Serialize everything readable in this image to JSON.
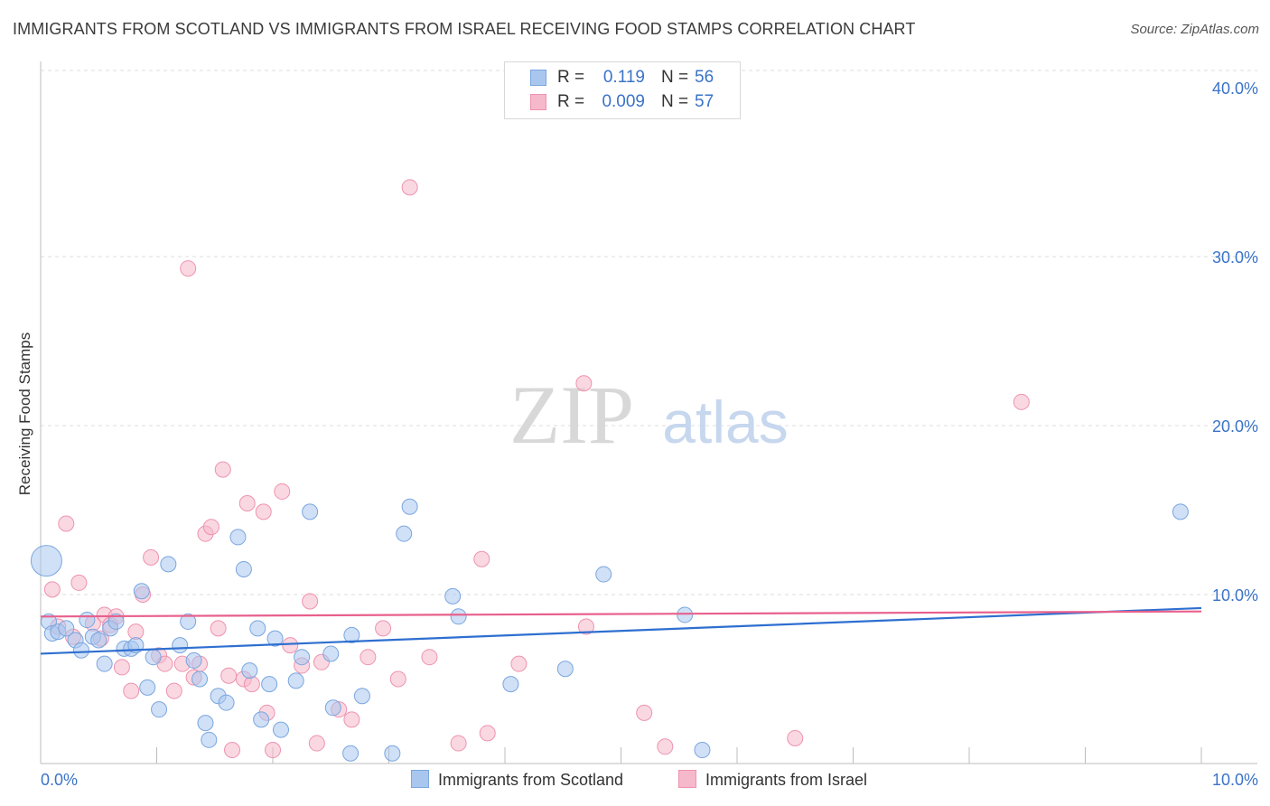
{
  "title": "IMMIGRANTS FROM SCOTLAND VS IMMIGRANTS FROM ISRAEL RECEIVING FOOD STAMPS CORRELATION CHART",
  "source": "Source: ZipAtlas.com",
  "watermark": {
    "zip": "ZIP",
    "atlas": "atlas"
  },
  "stats": [
    {
      "r_label": "R =",
      "r_value": "0.119",
      "n_label": "N =",
      "n_value": "56"
    },
    {
      "r_label": "R =",
      "r_value": "0.009",
      "n_label": "N =",
      "n_value": "57"
    }
  ],
  "legend": [
    {
      "label": "Immigrants from Scotland"
    },
    {
      "label": "Immigrants from Israel"
    }
  ],
  "colors": {
    "scotland_fill": "#a9c7ee",
    "scotland_stroke": "#7aa6df",
    "scotland_line": "#2e6fd0",
    "israel_fill": "#f6b8cb",
    "israel_stroke": "#ee93af",
    "israel_line": "#e8608c",
    "tick_label": "#3a73c8",
    "grid": "#dcdcdc"
  },
  "chart_data": {
    "type": "scatter",
    "title": "IMMIGRANTS FROM SCOTLAND VS IMMIGRANTS FROM ISRAEL RECEIVING FOOD STAMPS CORRELATION CHART",
    "xlabel": "",
    "ylabel": "Receiving Food Stamps",
    "xlim": [
      0,
      10
    ],
    "ylim": [
      0,
      40
    ],
    "x_tick_labels": [
      "0.0%",
      "10.0%"
    ],
    "y_ticks": [
      10,
      20,
      30,
      40
    ],
    "y_tick_labels": [
      "10.0%",
      "20.0%",
      "30.0%",
      "40.0%"
    ],
    "grid": true,
    "legend_position": "bottom",
    "series": [
      {
        "name": "Immigrants from Scotland",
        "R": 0.119,
        "N": 56,
        "trend": {
          "x": [
            0,
            10
          ],
          "y": [
            6.5,
            9.2
          ]
        },
        "points": [
          [
            0.05,
            12.0
          ],
          [
            0.07,
            8.4
          ],
          [
            0.1,
            7.7
          ],
          [
            0.15,
            7.8
          ],
          [
            0.22,
            8.0
          ],
          [
            0.3,
            7.3
          ],
          [
            0.35,
            6.7
          ],
          [
            0.4,
            8.5
          ],
          [
            0.45,
            7.5
          ],
          [
            0.5,
            7.3
          ],
          [
            0.55,
            5.9
          ],
          [
            0.6,
            8.0
          ],
          [
            0.65,
            8.4
          ],
          [
            0.72,
            6.8
          ],
          [
            0.78,
            6.8
          ],
          [
            0.82,
            7.0
          ],
          [
            0.87,
            10.2
          ],
          [
            0.92,
            4.5
          ],
          [
            0.97,
            6.3
          ],
          [
            1.02,
            3.2
          ],
          [
            1.1,
            11.8
          ],
          [
            1.2,
            7.0
          ],
          [
            1.27,
            8.4
          ],
          [
            1.32,
            6.1
          ],
          [
            1.37,
            5.0
          ],
          [
            1.42,
            2.4
          ],
          [
            1.45,
            1.4
          ],
          [
            1.53,
            4.0
          ],
          [
            1.6,
            3.6
          ],
          [
            1.7,
            13.4
          ],
          [
            1.75,
            11.5
          ],
          [
            1.8,
            5.5
          ],
          [
            1.87,
            8.0
          ],
          [
            1.9,
            2.6
          ],
          [
            1.97,
            4.7
          ],
          [
            2.02,
            7.4
          ],
          [
            2.07,
            2.0
          ],
          [
            2.2,
            4.9
          ],
          [
            2.25,
            6.3
          ],
          [
            2.32,
            14.9
          ],
          [
            2.5,
            6.5
          ],
          [
            2.52,
            3.3
          ],
          [
            2.67,
            0.6
          ],
          [
            2.68,
            7.6
          ],
          [
            2.77,
            4.0
          ],
          [
            3.03,
            0.6
          ],
          [
            3.13,
            13.6
          ],
          [
            3.18,
            15.2
          ],
          [
            3.55,
            9.9
          ],
          [
            3.6,
            8.7
          ],
          [
            4.05,
            4.7
          ],
          [
            4.52,
            5.6
          ],
          [
            4.85,
            11.2
          ],
          [
            5.55,
            8.8
          ],
          [
            5.7,
            0.8
          ],
          [
            9.82,
            14.9
          ]
        ]
      },
      {
        "name": "Immigrants from Israel",
        "R": 0.009,
        "N": 57,
        "trend": {
          "x": [
            0,
            10
          ],
          "y": [
            8.7,
            9.0
          ]
        },
        "points": [
          [
            0.1,
            10.3
          ],
          [
            0.15,
            8.1
          ],
          [
            0.22,
            14.2
          ],
          [
            0.28,
            7.5
          ],
          [
            0.33,
            10.7
          ],
          [
            0.45,
            8.3
          ],
          [
            0.52,
            7.4
          ],
          [
            0.55,
            8.8
          ],
          [
            0.6,
            8.2
          ],
          [
            0.65,
            8.7
          ],
          [
            0.7,
            5.7
          ],
          [
            0.78,
            4.3
          ],
          [
            0.82,
            7.8
          ],
          [
            0.88,
            10.0
          ],
          [
            0.95,
            12.2
          ],
          [
            1.02,
            6.4
          ],
          [
            1.07,
            5.9
          ],
          [
            1.15,
            4.3
          ],
          [
            1.22,
            5.9
          ],
          [
            1.27,
            29.3
          ],
          [
            1.32,
            5.1
          ],
          [
            1.37,
            5.9
          ],
          [
            1.42,
            13.6
          ],
          [
            1.47,
            14.0
          ],
          [
            1.53,
            8.0
          ],
          [
            1.57,
            17.4
          ],
          [
            1.62,
            5.2
          ],
          [
            1.65,
            0.8
          ],
          [
            1.75,
            5.0
          ],
          [
            1.78,
            15.4
          ],
          [
            1.82,
            4.7
          ],
          [
            1.92,
            14.9
          ],
          [
            1.95,
            3.0
          ],
          [
            2.0,
            0.8
          ],
          [
            2.08,
            16.1
          ],
          [
            2.15,
            7.0
          ],
          [
            2.25,
            5.8
          ],
          [
            2.32,
            9.6
          ],
          [
            2.38,
            1.2
          ],
          [
            2.42,
            6.0
          ],
          [
            2.57,
            3.2
          ],
          [
            2.68,
            2.6
          ],
          [
            2.82,
            6.3
          ],
          [
            2.95,
            8.0
          ],
          [
            3.08,
            5.0
          ],
          [
            3.18,
            34.1
          ],
          [
            3.35,
            6.3
          ],
          [
            3.6,
            1.2
          ],
          [
            3.8,
            12.1
          ],
          [
            3.85,
            1.8
          ],
          [
            4.12,
            5.9
          ],
          [
            4.68,
            22.5
          ],
          [
            4.7,
            8.1
          ],
          [
            5.2,
            3.0
          ],
          [
            5.38,
            1.0
          ],
          [
            6.5,
            1.5
          ],
          [
            8.45,
            21.4
          ]
        ]
      }
    ]
  }
}
